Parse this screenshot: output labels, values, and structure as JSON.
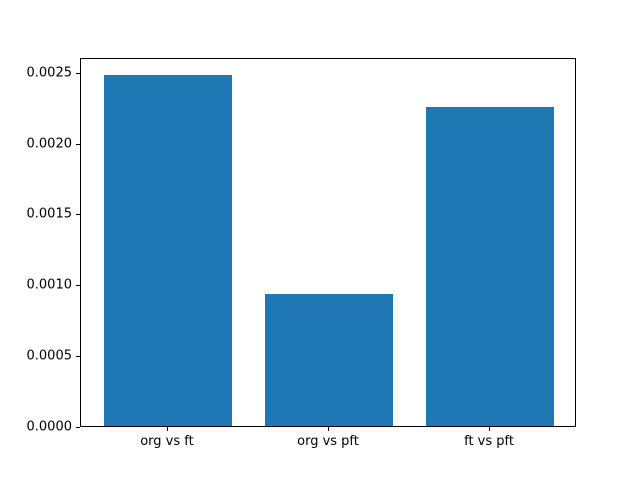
{
  "chart_data": {
    "type": "bar",
    "categories": [
      "org vs ft",
      "org vs pft",
      "ft vs pft"
    ],
    "values": [
      0.00248,
      0.00093,
      0.00225
    ],
    "title": "",
    "xlabel": "",
    "ylabel": "",
    "ylim": [
      0,
      0.002604
    ],
    "xlim": [
      -0.54,
      2.54
    ],
    "bar_width": 0.8,
    "yticks": [
      0.0,
      0.0005,
      0.001,
      0.0015,
      0.002,
      0.0025
    ],
    "ytick_labels": [
      "0.0000",
      "0.0005",
      "0.0010",
      "0.0015",
      "0.0020",
      "0.0025"
    ],
    "bar_color": "#1f77b4",
    "grid": false,
    "legend": "none"
  }
}
